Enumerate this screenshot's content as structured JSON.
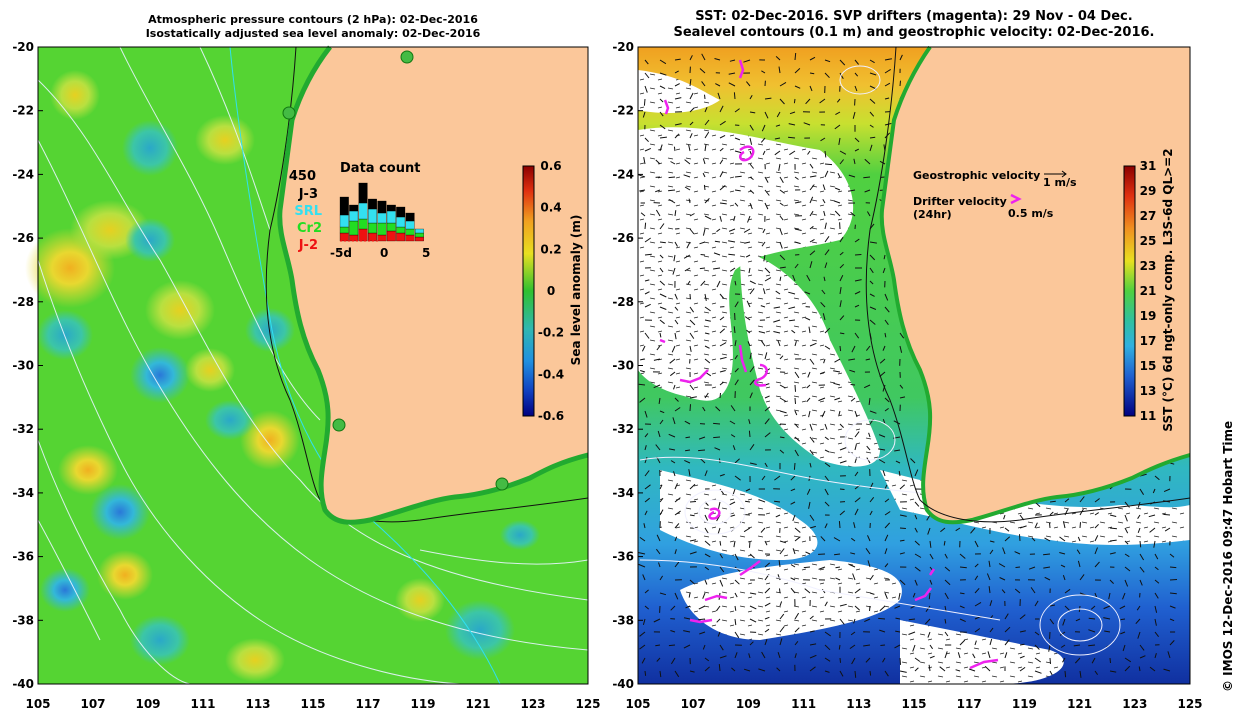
{
  "left_panel": {
    "title_line1": "Atmospheric pressure contours (2 hPa): 02-Dec-2016",
    "title_line2": "Isostatically adjusted sea level anomaly: 02-Dec-2016",
    "colorbar": {
      "label": "Sea level anomaly (m)",
      "ticks": [
        "0.6",
        "0.4",
        "0.2",
        "0",
        "-0.2",
        "-0.4",
        "-0.6"
      ]
    },
    "data_count": {
      "title": "Data count",
      "max_label": "450",
      "legend": [
        {
          "label": "J-3",
          "color": "#000000"
        },
        {
          "label": "SRL",
          "color": "#33e0f0"
        },
        {
          "label": "Cr2",
          "color": "#22dd22"
        },
        {
          "label": "J-2",
          "color": "#ee1111"
        }
      ],
      "axis_labels": [
        "-5d",
        "0",
        "5"
      ]
    }
  },
  "right_panel": {
    "title_line1": "SST: 02-Dec-2016. SVP drifters (magenta): 29 Nov - 04 Dec.",
    "title_line2": "Sealevel contours (0.1 m) and geostrophic velocity: 02-Dec-2016.",
    "geostrophic_label": "Geostrophic velocity",
    "geostrophic_scale": "1 m/s",
    "drifter_label_line1": "Drifter velocity",
    "drifter_label_line2": "(24hr)",
    "drifter_scale": "0.5 m/s",
    "colorbar": {
      "label": "SST (°C) 6d ngt-only comp. L3S-6d QL>=2",
      "ticks": [
        "31",
        "29",
        "27",
        "25",
        "23",
        "21",
        "19",
        "17",
        "15",
        "13",
        "11"
      ]
    }
  },
  "axes": {
    "y_ticks": [
      "-20",
      "-22",
      "-24",
      "-26",
      "-28",
      "-30",
      "-32",
      "-34",
      "-36",
      "-38",
      "-40"
    ],
    "x_ticks": [
      "105",
      "107",
      "109",
      "111",
      "113",
      "115",
      "117",
      "119",
      "121",
      "123",
      "125"
    ]
  },
  "credit": "© IMOS 12-Dec-2016 09:47 Hobart Time",
  "colors": {
    "land": "#fbc79a",
    "ocean_green": "#55d433",
    "coast_dark": "#1f8a25",
    "drifter": "#ee22ee"
  }
}
